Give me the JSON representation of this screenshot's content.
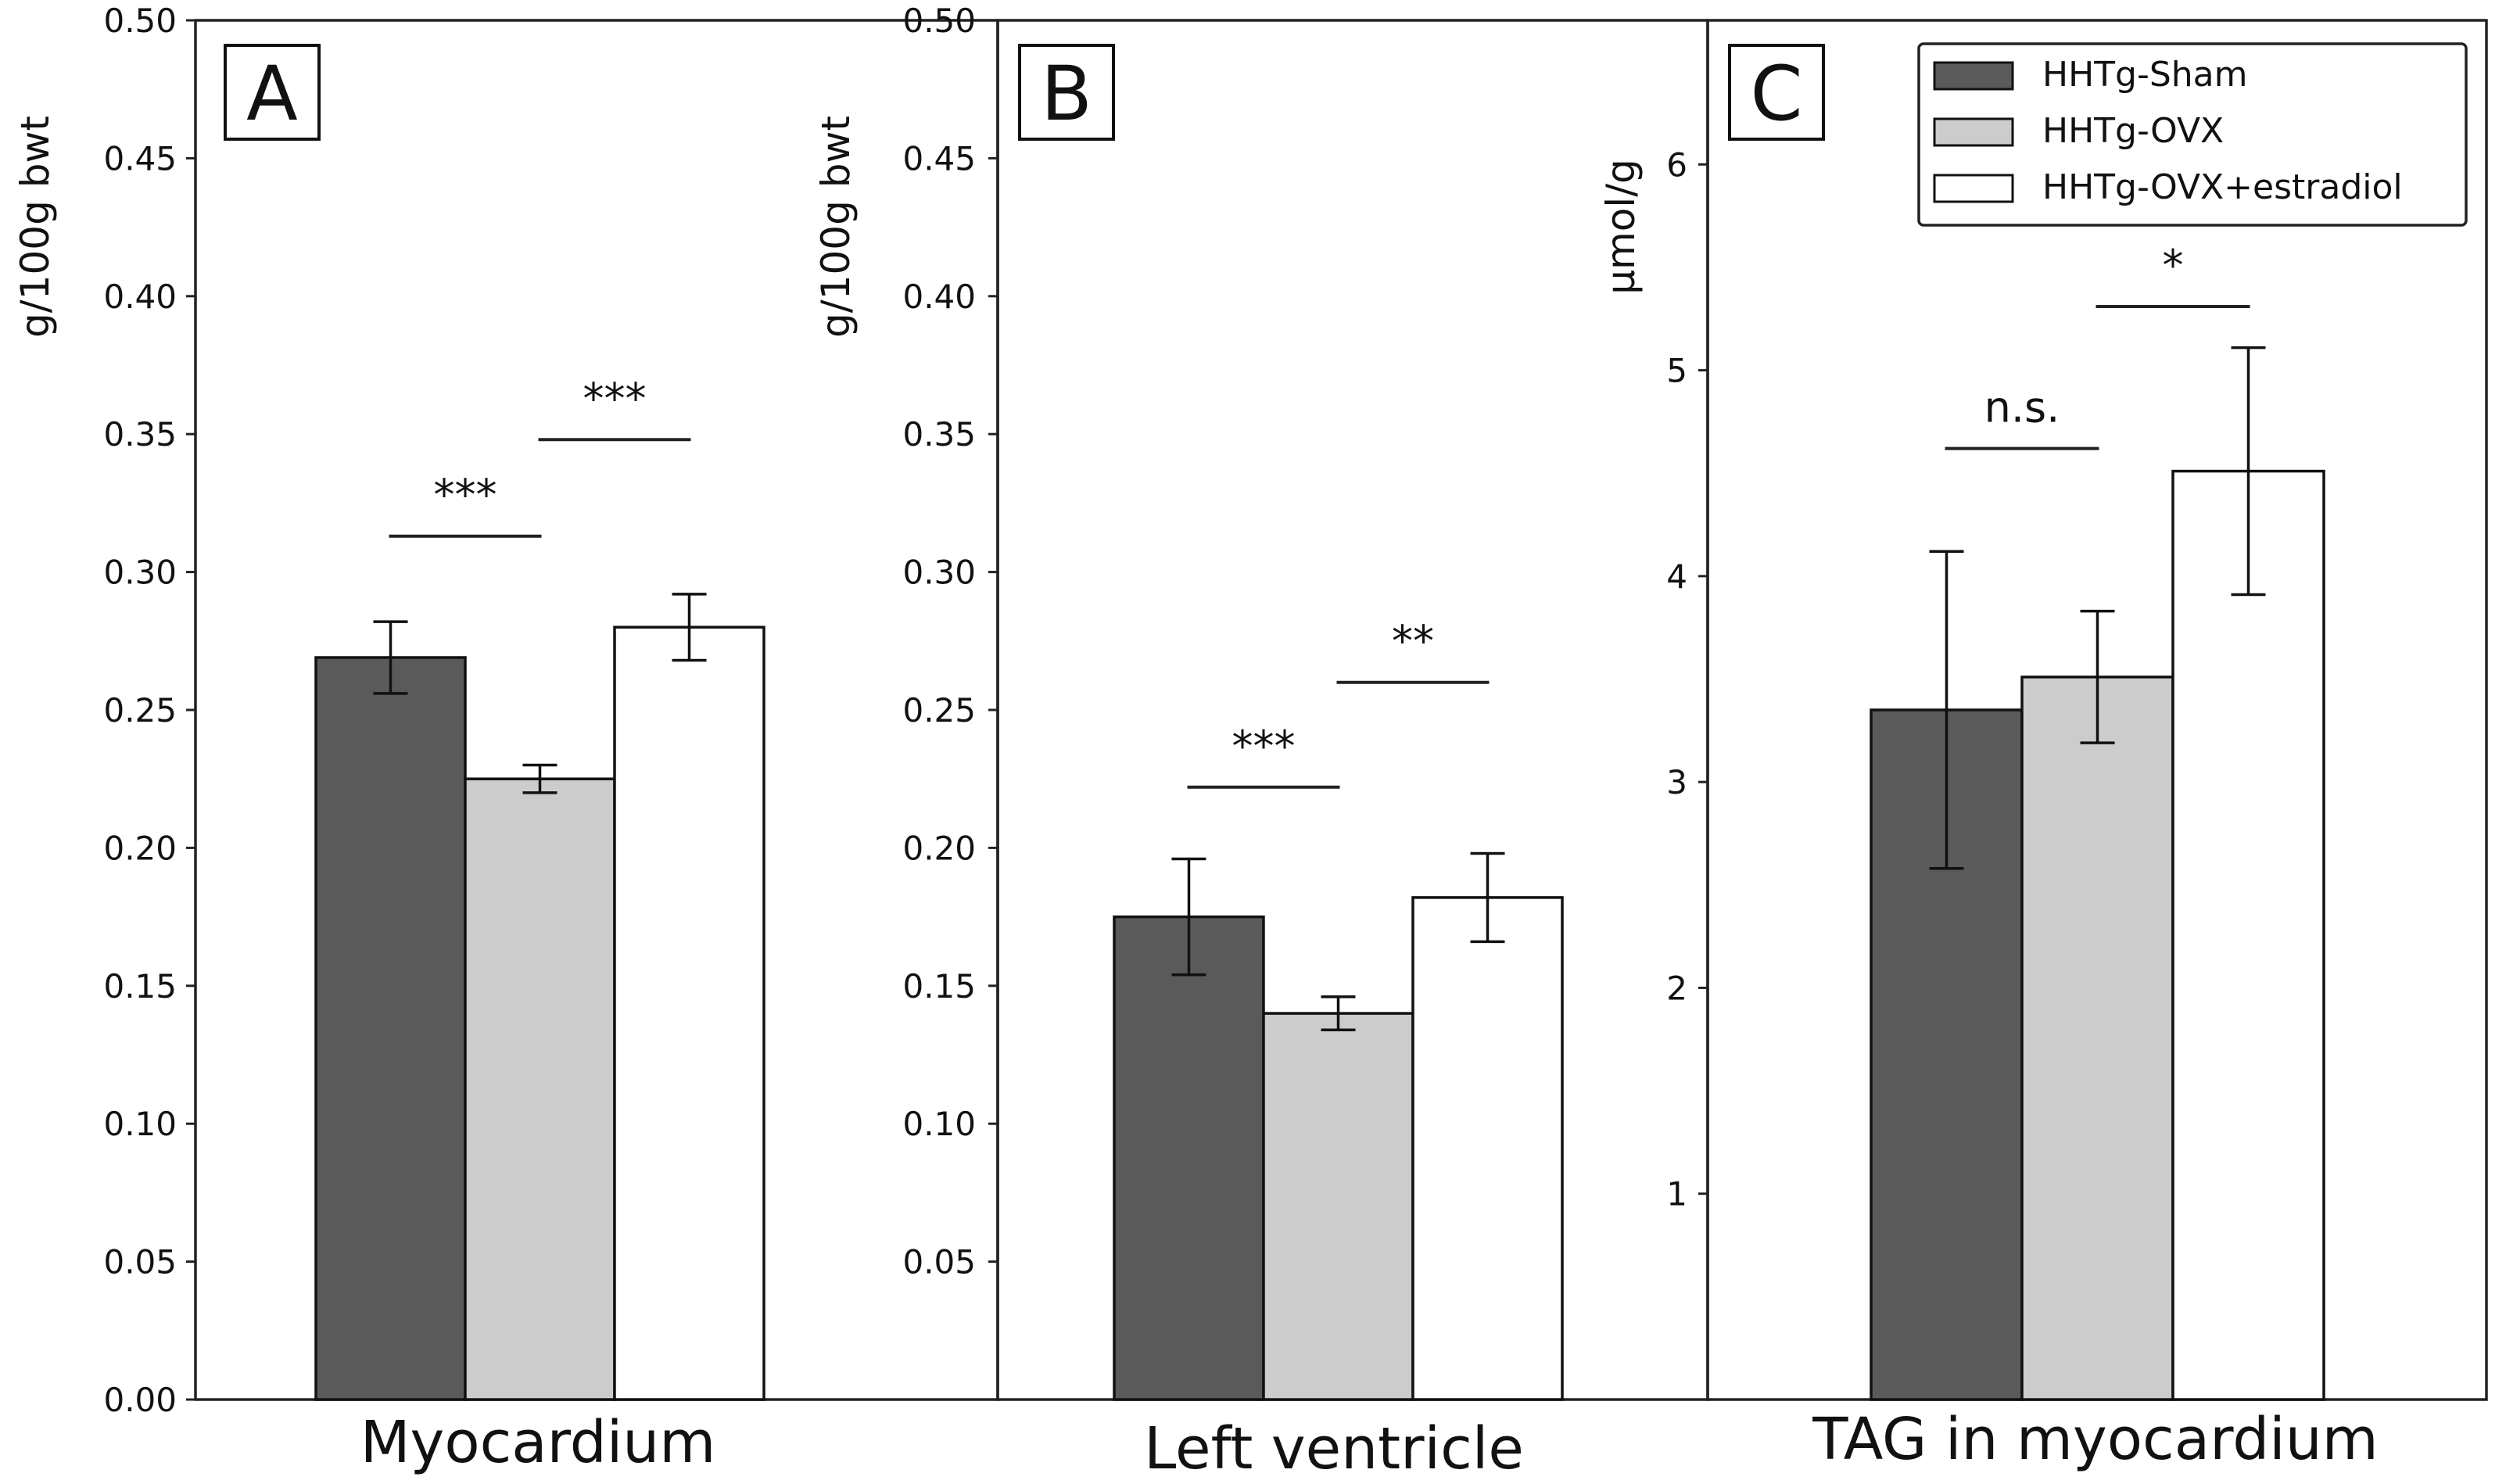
{
  "chart_data": [
    {
      "type": "bar",
      "panel": "A",
      "title": "",
      "xlabel": "Myocardium",
      "ylabel": "g/100g bwt",
      "ylim": [
        0,
        0.5
      ],
      "yticks": [
        "0.00",
        "0.05",
        "0.10",
        "0.15",
        "0.20",
        "0.25",
        "0.30",
        "0.35",
        "0.40",
        "0.45",
        "0.50"
      ],
      "ytick_values": [
        0,
        0.05,
        0.1,
        0.15,
        0.2,
        0.25,
        0.3,
        0.35,
        0.4,
        0.45,
        0.5
      ],
      "series": [
        {
          "name": "HHTg-Sham",
          "value": 0.269,
          "error": 0.013
        },
        {
          "name": "HHTg-OVX",
          "value": 0.225,
          "error": 0.005
        },
        {
          "name": "HHTg-OVX+estradiol",
          "value": 0.28,
          "error": 0.012
        }
      ],
      "significance": [
        {
          "from": 0,
          "to": 1,
          "level": 0.313,
          "label": "***"
        },
        {
          "from": 1,
          "to": 2,
          "level": 0.348,
          "label": "***"
        }
      ]
    },
    {
      "type": "bar",
      "panel": "B",
      "title": "",
      "xlabel": "Left ventricle",
      "ylabel": "g/100g bwt",
      "ylim": [
        0,
        0.5
      ],
      "yticks": [
        "0.05",
        "0.10",
        "0.15",
        "0.20",
        "0.25",
        "0.30",
        "0.35",
        "0.40",
        "0.45",
        "0.50"
      ],
      "ytick_values": [
        0.05,
        0.1,
        0.15,
        0.2,
        0.25,
        0.3,
        0.35,
        0.4,
        0.45,
        0.5
      ],
      "series": [
        {
          "name": "HHTg-Sham",
          "value": 0.175,
          "error": 0.021
        },
        {
          "name": "HHTg-OVX",
          "value": 0.14,
          "error": 0.006
        },
        {
          "name": "HHTg-OVX+estradiol",
          "value": 0.182,
          "error": 0.016
        }
      ],
      "significance": [
        {
          "from": 0,
          "to": 1,
          "level": 0.222,
          "label": "***"
        },
        {
          "from": 1,
          "to": 2,
          "level": 0.26,
          "label": "**"
        }
      ]
    },
    {
      "type": "bar",
      "panel": "C",
      "title": "",
      "xlabel": "TAG in myocardium",
      "ylabel": "μmol/g",
      "ylim": [
        0,
        6.7
      ],
      "yticks": [
        "1",
        "2",
        "3",
        "4",
        "5",
        "6"
      ],
      "ytick_values": [
        1,
        2,
        3,
        4,
        5,
        6
      ],
      "series": [
        {
          "name": "HHTg-Sham",
          "value": 3.35,
          "error": 0.77
        },
        {
          "name": "HHTg-OVX",
          "value": 3.51,
          "error": 0.32
        },
        {
          "name": "HHTg-OVX+estradiol",
          "value": 4.51,
          "error": 0.6
        }
      ],
      "significance": [
        {
          "from": 0,
          "to": 1,
          "level": 4.62,
          "label": "n.s."
        },
        {
          "from": 1,
          "to": 2,
          "level": 5.31,
          "label": "*"
        }
      ]
    }
  ],
  "legend": {
    "position": "top-right",
    "entries": [
      {
        "label": "HHTg-Sham",
        "color": "#5a5a5a"
      },
      {
        "label": "HHTg-OVX",
        "color": "#cccccc"
      },
      {
        "label": "HHTg-OVX+estradiol",
        "color": "#ffffff"
      }
    ]
  },
  "colors": {
    "sham": "#5a5a5a",
    "ovx": "#cccccc",
    "estradiol": "#ffffff",
    "axis": "#222222"
  }
}
